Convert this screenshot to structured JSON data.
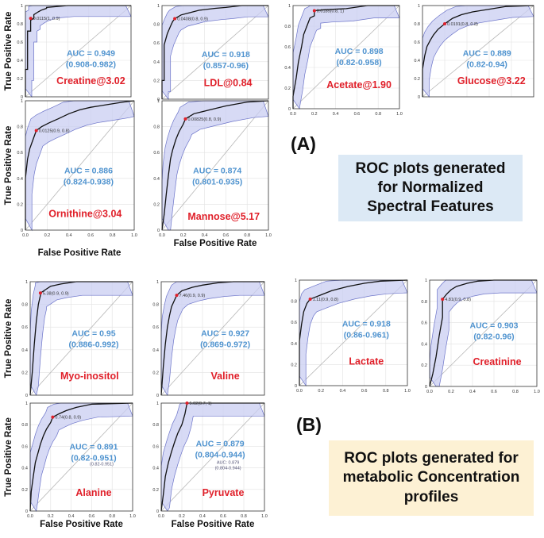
{
  "colors": {
    "curve": "#111111",
    "band_fill": "#c9cdf2",
    "band_stroke": "#6c74c9",
    "diagonal": "#b7b7b7",
    "grid": "#e2e2e2",
    "auc_text": "#4f93cf",
    "feature_text": "#e0202a",
    "cutoff_point": "#e0202a",
    "caption_a_bg": "#dce9f5",
    "caption_b_bg": "#fdf1d4"
  },
  "axis_labels": {
    "y": "True Positive Rate",
    "x": "False Positive Rate"
  },
  "ticks": [
    "0.0",
    "0.2",
    "0.4",
    "0.6",
    "0.8",
    "1.0"
  ],
  "tick_labels_y": [
    "0",
    "0.2",
    "0.4",
    "0.6",
    "0.8",
    "1"
  ],
  "sections": {
    "a": {
      "label": "(A)",
      "caption_lines": [
        "ROC plots generated",
        "for Normalized",
        "Spectral Features"
      ]
    },
    "b": {
      "label": "(B)",
      "caption_lines": [
        "ROC plots generated for",
        "metabolic Concentration",
        "profiles"
      ]
    }
  },
  "chart_data": [
    {
      "type": "line",
      "title": "Creatine@3.02",
      "auc": "AUC = 0.949",
      "ci": "(0.908-0.982)",
      "cutoff_label": "0.0115(1, 0.9)",
      "cutoff": [
        0.05,
        0.86
      ],
      "xlabel": "",
      "ylabel": "True Positive Rate",
      "xlim": [
        0,
        1
      ],
      "ylim": [
        0,
        1
      ],
      "x": [
        0,
        0,
        0.02,
        0.02,
        0.05,
        0.05,
        0.08,
        0.08,
        0.12,
        0.15,
        0.2,
        0.2,
        0.3,
        0.4,
        0.5,
        1
      ],
      "y": [
        0,
        0.3,
        0.3,
        0.72,
        0.72,
        0.84,
        0.86,
        0.9,
        0.93,
        0.95,
        0.97,
        0.98,
        0.99,
        1,
        1,
        1
      ]
    },
    {
      "type": "line",
      "title": "LDL@0.84",
      "auc": "AUC = 0.918",
      "ci": "(0.857-0.96)",
      "cutoff_label": "0.0408(0.8, 0.9)",
      "cutoff": [
        0.12,
        0.86
      ],
      "xlabel": "",
      "ylabel": "",
      "xlim": [
        0,
        1
      ],
      "ylim": [
        0,
        1
      ],
      "x": [
        0,
        0,
        0.02,
        0.02,
        0.05,
        0.08,
        0.1,
        0.12,
        0.18,
        0.25,
        0.35,
        0.5,
        0.6,
        0.75,
        1
      ],
      "y": [
        0,
        0.2,
        0.2,
        0.58,
        0.7,
        0.78,
        0.83,
        0.86,
        0.9,
        0.92,
        0.95,
        0.97,
        0.98,
        1,
        1
      ]
    },
    {
      "type": "line",
      "title": "Acetate@1.90",
      "auc": "AUC = 0.898",
      "ci": "(0.82-0.958)",
      "cutoff_label": "0.0185(0.8, 1)",
      "cutoff": [
        0.2,
        0.95
      ],
      "xlabel": "",
      "ylabel": "",
      "xlim": [
        0,
        1
      ],
      "ylim": [
        0,
        1
      ],
      "x": [
        0,
        0,
        0.03,
        0.05,
        0.08,
        0.1,
        0.13,
        0.16,
        0.2,
        0.2,
        0.3,
        0.5,
        0.7,
        1
      ],
      "y": [
        0,
        0.12,
        0.3,
        0.45,
        0.6,
        0.72,
        0.8,
        0.88,
        0.9,
        0.95,
        0.96,
        0.97,
        1,
        1
      ]
    },
    {
      "type": "line",
      "title": "Glucose@3.22",
      "auc": "AUC = 0.889",
      "ci": "(0.82-0.94)",
      "cutoff_label": "0.0191(0.8, 0.8)",
      "cutoff": [
        0.2,
        0.8
      ],
      "xlabel": "",
      "ylabel": "",
      "xlim": [
        0,
        1
      ],
      "ylim": [
        0,
        1
      ],
      "x": [
        0,
        0,
        0.02,
        0.04,
        0.07,
        0.1,
        0.14,
        0.2,
        0.27,
        0.35,
        0.45,
        0.6,
        0.75,
        1
      ],
      "y": [
        0,
        0.3,
        0.45,
        0.55,
        0.62,
        0.68,
        0.74,
        0.8,
        0.86,
        0.9,
        0.93,
        0.96,
        0.99,
        1
      ]
    },
    {
      "type": "line",
      "title": "Ornithine@3.04",
      "auc": "AUC = 0.886",
      "ci": "(0.824-0.938)",
      "cutoff_label": "0.0125(0.9, 0.8)",
      "cutoff": [
        0.1,
        0.77
      ],
      "xlabel": "",
      "ylabel": "True Positive Rate",
      "xlim": [
        0,
        1
      ],
      "ylim": [
        0,
        1
      ],
      "x": [
        0,
        0,
        0.02,
        0.04,
        0.07,
        0.1,
        0.15,
        0.22,
        0.3,
        0.4,
        0.5,
        0.6,
        0.75,
        0.9,
        1
      ],
      "y": [
        0,
        0.4,
        0.55,
        0.63,
        0.7,
        0.77,
        0.8,
        0.83,
        0.86,
        0.9,
        0.93,
        0.95,
        0.97,
        0.99,
        1
      ]
    },
    {
      "type": "line",
      "title": "Mannose@5.17",
      "auc": "AUC = 0.874",
      "ci": "(0.801-0.935)",
      "cutoff_label": "0.00825(0.8, 0.9)",
      "cutoff": [
        0.22,
        0.86
      ],
      "xlabel": "False Positive Rate",
      "ylabel": "",
      "xlim": [
        0,
        1
      ],
      "ylim": [
        0,
        1
      ],
      "x": [
        0,
        0.02,
        0.04,
        0.06,
        0.08,
        0.1,
        0.13,
        0.16,
        0.2,
        0.22,
        0.3,
        0.45,
        0.6,
        0.8,
        1
      ],
      "y": [
        0,
        0.12,
        0.28,
        0.42,
        0.55,
        0.62,
        0.7,
        0.76,
        0.82,
        0.86,
        0.9,
        0.93,
        0.96,
        0.99,
        1
      ]
    },
    {
      "type": "line",
      "title": "Myo-inositol",
      "auc": "AUC = 0.95",
      "ci": "(0.886-0.992)",
      "cutoff_label": "5.38(0.9, 0.9)",
      "cutoff": [
        0.1,
        0.9
      ],
      "xlabel": "",
      "ylabel": "True Positive Rate",
      "xlim": [
        0,
        1
      ],
      "ylim": [
        0,
        1
      ],
      "x": [
        0,
        0.02,
        0.04,
        0.06,
        0.08,
        0.1,
        0.1,
        0.15,
        0.2,
        0.3,
        0.45,
        0.6,
        1
      ],
      "y": [
        0,
        0.2,
        0.45,
        0.65,
        0.8,
        0.88,
        0.9,
        0.93,
        0.96,
        0.98,
        1,
        1,
        1
      ]
    },
    {
      "type": "line",
      "title": "Valine",
      "auc": "AUC = 0.927",
      "ci": "(0.869-0.972)",
      "cutoff_label": "7.46(0.9, 0.9)",
      "cutoff": [
        0.15,
        0.88
      ],
      "xlabel": "",
      "ylabel": "",
      "xlim": [
        0,
        1
      ],
      "ylim": [
        0,
        1
      ],
      "x": [
        0,
        0.02,
        0.04,
        0.06,
        0.08,
        0.1,
        0.13,
        0.15,
        0.2,
        0.3,
        0.4,
        0.55,
        0.7,
        1
      ],
      "y": [
        0,
        0.25,
        0.45,
        0.6,
        0.7,
        0.78,
        0.84,
        0.88,
        0.92,
        0.95,
        0.97,
        0.99,
        1,
        1
      ]
    },
    {
      "type": "line",
      "title": "Lactate",
      "auc": "AUC = 0.918",
      "ci": "(0.86-0.961)",
      "cutoff_label": "1.11(0.9, 0.8)",
      "cutoff": [
        0.1,
        0.82
      ],
      "xlabel": "",
      "ylabel": "",
      "xlim": [
        0,
        1
      ],
      "ylim": [
        0,
        1
      ],
      "x": [
        0,
        0,
        0.02,
        0.04,
        0.07,
        0.1,
        0.15,
        0.2,
        0.3,
        0.45,
        0.6,
        0.75,
        1
      ],
      "y": [
        0,
        0.42,
        0.58,
        0.7,
        0.78,
        0.82,
        0.84,
        0.86,
        0.9,
        0.94,
        0.97,
        0.99,
        1
      ]
    },
    {
      "type": "line",
      "title": "Creatinine",
      "auc": "AUC = 0.903",
      "ci": "(0.82-0.96)",
      "cutoff_label": "4.81(0.9, 0.8)",
      "cutoff": [
        0.12,
        0.82
      ],
      "xlabel": "",
      "ylabel": "",
      "xlim": [
        0,
        1
      ],
      "ylim": [
        0,
        1
      ],
      "x": [
        0,
        0.03,
        0.06,
        0.09,
        0.12,
        0.12,
        0.16,
        0.2,
        0.25,
        0.35,
        0.45,
        0.6,
        1
      ],
      "y": [
        0,
        0.12,
        0.28,
        0.48,
        0.65,
        0.82,
        0.87,
        0.91,
        0.94,
        0.97,
        0.99,
        1,
        1
      ]
    },
    {
      "type": "line",
      "title": "Alanine",
      "auc": "AUC = 0.891",
      "ci": "(0.82-0.951)",
      "ci_ghost": "(0.82-0.951)",
      "cutoff_label": "0.74(0.8, 0.9)",
      "cutoff": [
        0.22,
        0.87
      ],
      "xlabel": "False Positive Rate",
      "ylabel": "True Positive Rate",
      "xlim": [
        0,
        1
      ],
      "ylim": [
        0,
        1
      ],
      "x": [
        0,
        0.01,
        0.03,
        0.05,
        0.08,
        0.1,
        0.13,
        0.16,
        0.2,
        0.22,
        0.28,
        0.35,
        0.45,
        0.6,
        1
      ],
      "y": [
        0,
        0.18,
        0.32,
        0.45,
        0.55,
        0.62,
        0.7,
        0.76,
        0.82,
        0.87,
        0.9,
        0.93,
        0.96,
        0.99,
        1
      ]
    },
    {
      "type": "line",
      "title": "Pyruvate",
      "auc": "AUC = 0.879",
      "ci": "(0.804-0.944)",
      "auc_ghost": "AUC: 0.879",
      "ci_ghost": "(0.804-0.944)",
      "cutoff_label": "5.02(0.7, 1)",
      "cutoff": [
        0.25,
        1
      ],
      "xlabel": "False Positive Rate",
      "ylabel": "",
      "xlim": [
        0,
        1
      ],
      "ylim": [
        0,
        1
      ],
      "x": [
        0,
        0.02,
        0.04,
        0.07,
        0.1,
        0.13,
        0.16,
        0.2,
        0.23,
        0.25,
        0.4,
        0.6,
        1
      ],
      "y": [
        0,
        0.15,
        0.32,
        0.45,
        0.55,
        0.64,
        0.72,
        0.8,
        0.9,
        1,
        1,
        1,
        1
      ]
    }
  ]
}
